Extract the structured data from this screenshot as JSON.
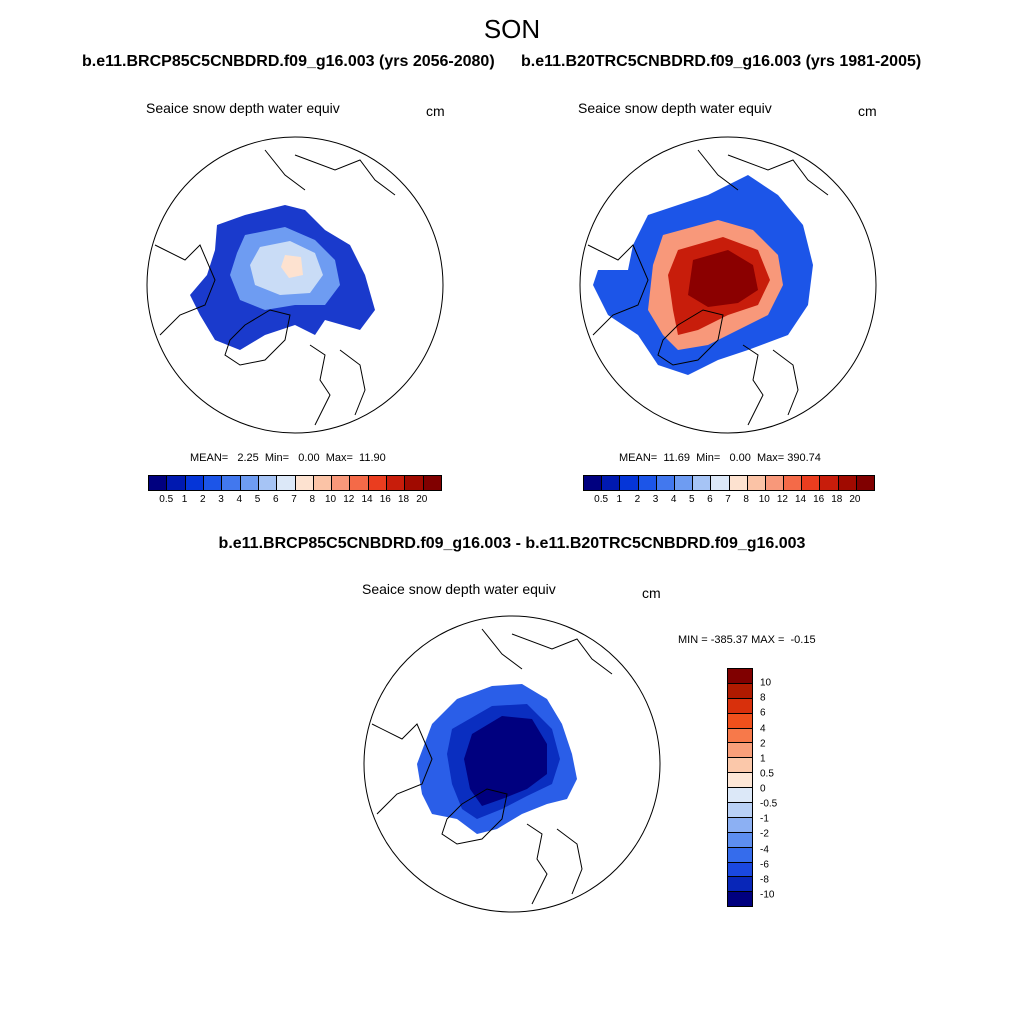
{
  "title": "SON",
  "panels": [
    {
      "id": "left",
      "run_title": "b.e11.BRCP85C5CNBDRD.f09_g16.003 (yrs 2056-2080)",
      "variable": "Seaice snow depth water equiv",
      "units": "cm",
      "stats": "MEAN=   2.25  Min=   0.00  Max=  11.90"
    },
    {
      "id": "right",
      "run_title": "b.e11.B20TRC5CNBDRD.f09_g16.003 (yrs 1981-2005)",
      "variable": "Seaice snow depth water equiv",
      "units": "cm",
      "stats": "MEAN=  11.69  Min=   0.00  Max= 390.74"
    },
    {
      "id": "diff",
      "run_title": "b.e11.BRCP85C5CNBDRD.f09_g16.003 - b.e11.B20TRC5CNBDRD.f09_g16.003",
      "variable": "Seaice snow depth water equiv",
      "units": "cm",
      "stats": "MIN = -385.37 MAX =  -0.15"
    }
  ],
  "colorbar_abs": {
    "labels": [
      "0.5",
      "1",
      "2",
      "3",
      "4",
      "5",
      "6",
      "7",
      "8",
      "10",
      "12",
      "14",
      "16",
      "18",
      "20"
    ],
    "colors": [
      "#00007f",
      "#0019b0",
      "#0535d8",
      "#1c55e8",
      "#4278ee",
      "#6e9cf2",
      "#a6c4f5",
      "#dce8f8",
      "#fde2d0",
      "#fbc3a6",
      "#f8987a",
      "#f46a48",
      "#ea3d1f",
      "#c81d0b",
      "#a00a00",
      "#800000"
    ]
  },
  "colorbar_diff": {
    "labels": [
      "10",
      "8",
      "6",
      "4",
      "2",
      "1",
      "0.5",
      "0",
      "-0.5",
      "-1",
      "-2",
      "-4",
      "-6",
      "-8",
      "-10"
    ],
    "colors": [
      "#800000",
      "#b01a00",
      "#d8300c",
      "#f0501c",
      "#f7794a",
      "#f99f7a",
      "#fbc8aa",
      "#fde6d6",
      "#dce8f8",
      "#b8d0f6",
      "#8cb0f3",
      "#5d8ef0",
      "#356cec",
      "#1a48e0",
      "#0826b8",
      "#00007f"
    ]
  },
  "map_fields": {
    "left": {
      "outer_color": "#1a3acc",
      "mid_color": "#6e9cf2",
      "inner_color": "#c9dcf6",
      "peak_color": "#fde2d0"
    },
    "right": {
      "outer_color": "#1c55e8",
      "mid_color": "#f8987a",
      "inner_color": "#c81d0b",
      "peak_color": "#8b0000"
    },
    "diff": {
      "outer_color": "#2a5ee8",
      "mid_color": "#0a2ec0",
      "inner_color": "#00007f",
      "peak_color": "#00007f"
    }
  }
}
